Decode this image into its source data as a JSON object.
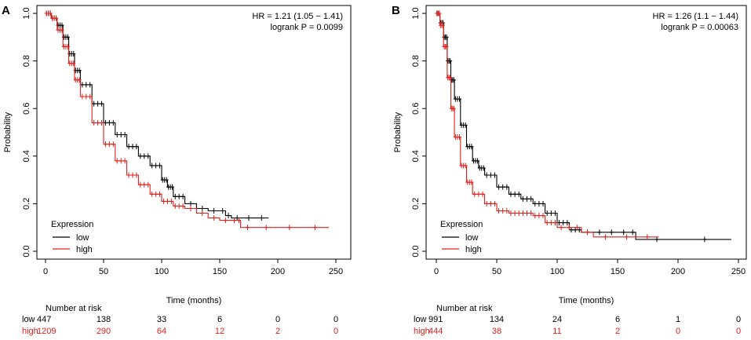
{
  "chart_data": [
    {
      "panel_label": "A",
      "type": "line",
      "title": "",
      "xlabel": "Time (months)",
      "ylabel": "Probability",
      "xlim": [
        0,
        250
      ],
      "ylim": [
        0,
        1
      ],
      "xticks": [
        "0",
        "50",
        "100",
        "150",
        "200",
        "250"
      ],
      "yticks": [
        "0.0",
        "0.2",
        "0.4",
        "0.6",
        "0.8",
        "1.0"
      ],
      "stats": {
        "hr": "HR = 1.21 (1.05 − 1.41)",
        "p": "logrank P = 0.0099"
      },
      "legend": {
        "title": "Expression",
        "position": "bottom-left",
        "entries": [
          {
            "label": "low",
            "color": "#000000"
          },
          {
            "label": "high",
            "color": "#e0201b"
          }
        ]
      },
      "series": [
        {
          "name": "low",
          "color": "#000000",
          "x": [
            0,
            5,
            10,
            15,
            20,
            25,
            30,
            40,
            50,
            60,
            70,
            80,
            90,
            100,
            105,
            110,
            120,
            130,
            140,
            150,
            155,
            160,
            170,
            180,
            192
          ],
          "y": [
            1.0,
            0.98,
            0.95,
            0.9,
            0.83,
            0.76,
            0.7,
            0.62,
            0.54,
            0.49,
            0.44,
            0.4,
            0.36,
            0.3,
            0.27,
            0.23,
            0.2,
            0.18,
            0.17,
            0.17,
            0.15,
            0.14,
            0.14,
            0.14,
            0.14
          ]
        },
        {
          "name": "high",
          "color": "#e0201b",
          "x": [
            0,
            5,
            10,
            15,
            20,
            25,
            30,
            40,
            50,
            60,
            70,
            80,
            90,
            100,
            110,
            120,
            130,
            140,
            150,
            160,
            165,
            168,
            180,
            200,
            220,
            244
          ],
          "y": [
            1.0,
            0.98,
            0.93,
            0.86,
            0.79,
            0.72,
            0.65,
            0.54,
            0.45,
            0.38,
            0.32,
            0.28,
            0.24,
            0.21,
            0.19,
            0.18,
            0.16,
            0.14,
            0.13,
            0.13,
            0.13,
            0.1,
            0.1,
            0.1,
            0.1,
            0.1
          ]
        }
      ],
      "risk_table": {
        "title": "Number at risk",
        "rows": [
          {
            "name": "low",
            "color": "#000000",
            "values": [
              "447",
              "138",
              "33",
              "6",
              "0",
              "0"
            ]
          },
          {
            "name": "high",
            "color": "#e0201b",
            "values": [
              "1209",
              "290",
              "64",
              "12",
              "2",
              "0"
            ]
          }
        ]
      }
    },
    {
      "panel_label": "B",
      "type": "line",
      "title": "",
      "xlabel": "Time (months)",
      "ylabel": "Probability",
      "xlim": [
        0,
        250
      ],
      "ylim": [
        0,
        1
      ],
      "xticks": [
        "0",
        "50",
        "100",
        "150",
        "200",
        "250"
      ],
      "yticks": [
        "0.0",
        "0.2",
        "0.4",
        "0.6",
        "0.8",
        "1.0"
      ],
      "stats": {
        "hr": "HR = 1.26 (1.1 − 1.44)",
        "p": "logrank P = 0.00063"
      },
      "legend": {
        "title": "Expression",
        "position": "bottom-left",
        "entries": [
          {
            "label": "low",
            "color": "#000000"
          },
          {
            "label": "high",
            "color": "#e0201b"
          }
        ]
      },
      "series": [
        {
          "name": "low",
          "color": "#000000",
          "x": [
            0,
            3,
            6,
            9,
            12,
            15,
            20,
            25,
            30,
            35,
            40,
            50,
            60,
            70,
            80,
            90,
            100,
            110,
            120,
            130,
            140,
            150,
            160,
            165,
            200,
            244
          ],
          "y": [
            1.0,
            0.96,
            0.9,
            0.8,
            0.72,
            0.64,
            0.53,
            0.44,
            0.38,
            0.35,
            0.32,
            0.27,
            0.24,
            0.22,
            0.2,
            0.16,
            0.12,
            0.09,
            0.08,
            0.08,
            0.08,
            0.08,
            0.08,
            0.05,
            0.05,
            0.05
          ]
        },
        {
          "name": "high",
          "color": "#e0201b",
          "x": [
            0,
            3,
            6,
            9,
            12,
            15,
            20,
            25,
            30,
            40,
            50,
            60,
            70,
            80,
            90,
            100,
            120,
            130,
            150,
            165,
            184
          ],
          "y": [
            1.0,
            0.95,
            0.86,
            0.73,
            0.6,
            0.48,
            0.36,
            0.29,
            0.24,
            0.2,
            0.17,
            0.16,
            0.16,
            0.15,
            0.12,
            0.1,
            0.08,
            0.06,
            0.06,
            0.06,
            0.06
          ]
        }
      ],
      "risk_table": {
        "title": "Number at risk",
        "rows": [
          {
            "name": "low",
            "color": "#000000",
            "values": [
              "991",
              "134",
              "24",
              "6",
              "1",
              "0"
            ]
          },
          {
            "name": "high",
            "color": "#e0201b",
            "values": [
              "444",
              "38",
              "11",
              "2",
              "0",
              "0"
            ]
          }
        ]
      }
    }
  ]
}
